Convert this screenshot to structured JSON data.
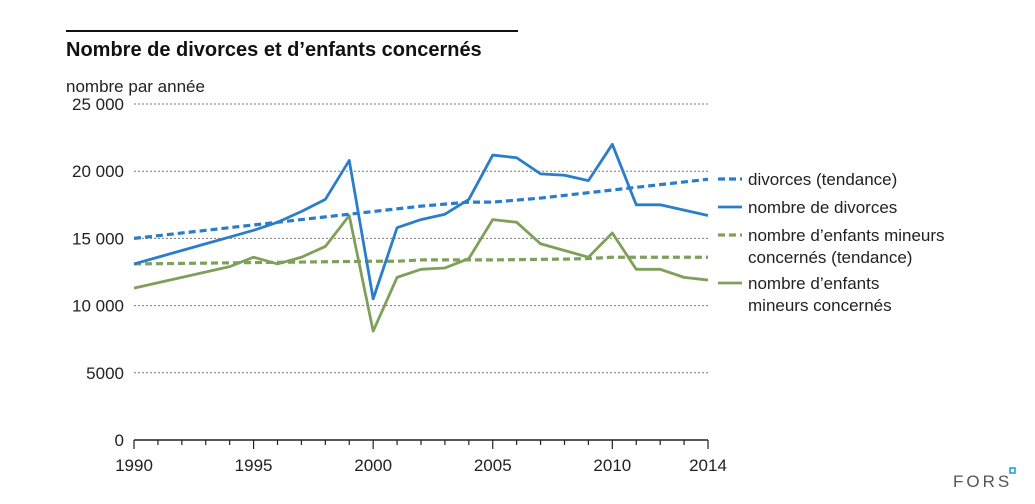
{
  "chart_data": {
    "type": "line",
    "title": "Nombre de divorces et d’enfants concernés",
    "ylabel": "nombre par année",
    "xlabel": "",
    "xlim": [
      1990,
      2014
    ],
    "ylim": [
      0,
      25000
    ],
    "grid": true,
    "legend_position": "right",
    "x_ticks": [
      {
        "value": 1990,
        "label": "1990"
      },
      {
        "value": 1995,
        "label": "1995"
      },
      {
        "value": 2000,
        "label": "2000"
      },
      {
        "value": 2005,
        "label": "2005"
      },
      {
        "value": 2010,
        "label": "2010"
      },
      {
        "value": 2014,
        "label": "2014"
      }
    ],
    "y_ticks": [
      {
        "value": 0,
        "label": "0"
      },
      {
        "value": 5000,
        "label": "5000"
      },
      {
        "value": 10000,
        "label": "10 000"
      },
      {
        "value": 15000,
        "label": "15 000"
      },
      {
        "value": 20000,
        "label": "20 000"
      },
      {
        "value": 25000,
        "label": "25 000"
      }
    ],
    "x": [
      1990,
      1991,
      1992,
      1993,
      1994,
      1995,
      1996,
      1997,
      1998,
      1999,
      2000,
      2001,
      2002,
      2003,
      2004,
      2005,
      2006,
      2007,
      2008,
      2009,
      2010,
      2011,
      2012,
      2013,
      2014
    ],
    "series": [
      {
        "name": "divorces (tendance)",
        "legend_lines": [
          "divorces (tendance)"
        ],
        "color": "#2a7dc9",
        "dashed": true,
        "values": [
          15000,
          15200,
          15400,
          15600,
          15800,
          16000,
          16200,
          16400,
          16600,
          16800,
          17000,
          17200,
          17400,
          17550,
          17700,
          17700,
          17850,
          18000,
          18200,
          18400,
          18600,
          18800,
          19000,
          19200,
          19400
        ]
      },
      {
        "name": "nombre de divorces",
        "legend_lines": [
          "nombre de divorces"
        ],
        "color": "#2a7dc9",
        "dashed": false,
        "values": [
          13100,
          13600,
          14100,
          14600,
          15100,
          15600,
          16200,
          17000,
          17900,
          20800,
          10500,
          15800,
          16400,
          16800,
          17900,
          21200,
          21000,
          19800,
          19700,
          19300,
          22000,
          17500,
          17500,
          17100,
          16700
        ]
      },
      {
        "name": "nombre d’enfants mineurs concernés (tendance)",
        "legend_lines": [
          "nombre d’enfants mineurs",
          "concernés (tendance)"
        ],
        "color": "#7fa05a",
        "dashed": true,
        "values": [
          13100,
          13120,
          13140,
          13160,
          13180,
          13200,
          13220,
          13240,
          13260,
          13280,
          13300,
          13300,
          13400,
          13400,
          13400,
          13400,
          13420,
          13440,
          13460,
          13500,
          13600,
          13600,
          13600,
          13600,
          13600
        ]
      },
      {
        "name": "nombre d’enfants mineurs concernés",
        "legend_lines": [
          "nombre d’enfants",
          "mineurs concernés"
        ],
        "color": "#7fa05a",
        "dashed": false,
        "values": [
          11300,
          11700,
          12100,
          12500,
          12900,
          13600,
          13100,
          13600,
          14400,
          16700,
          8100,
          12100,
          12700,
          12800,
          13500,
          16400,
          16200,
          14600,
          14100,
          13600,
          15400,
          12700,
          12700,
          12100,
          11900
        ]
      }
    ]
  },
  "brand": {
    "name": "FORS"
  }
}
